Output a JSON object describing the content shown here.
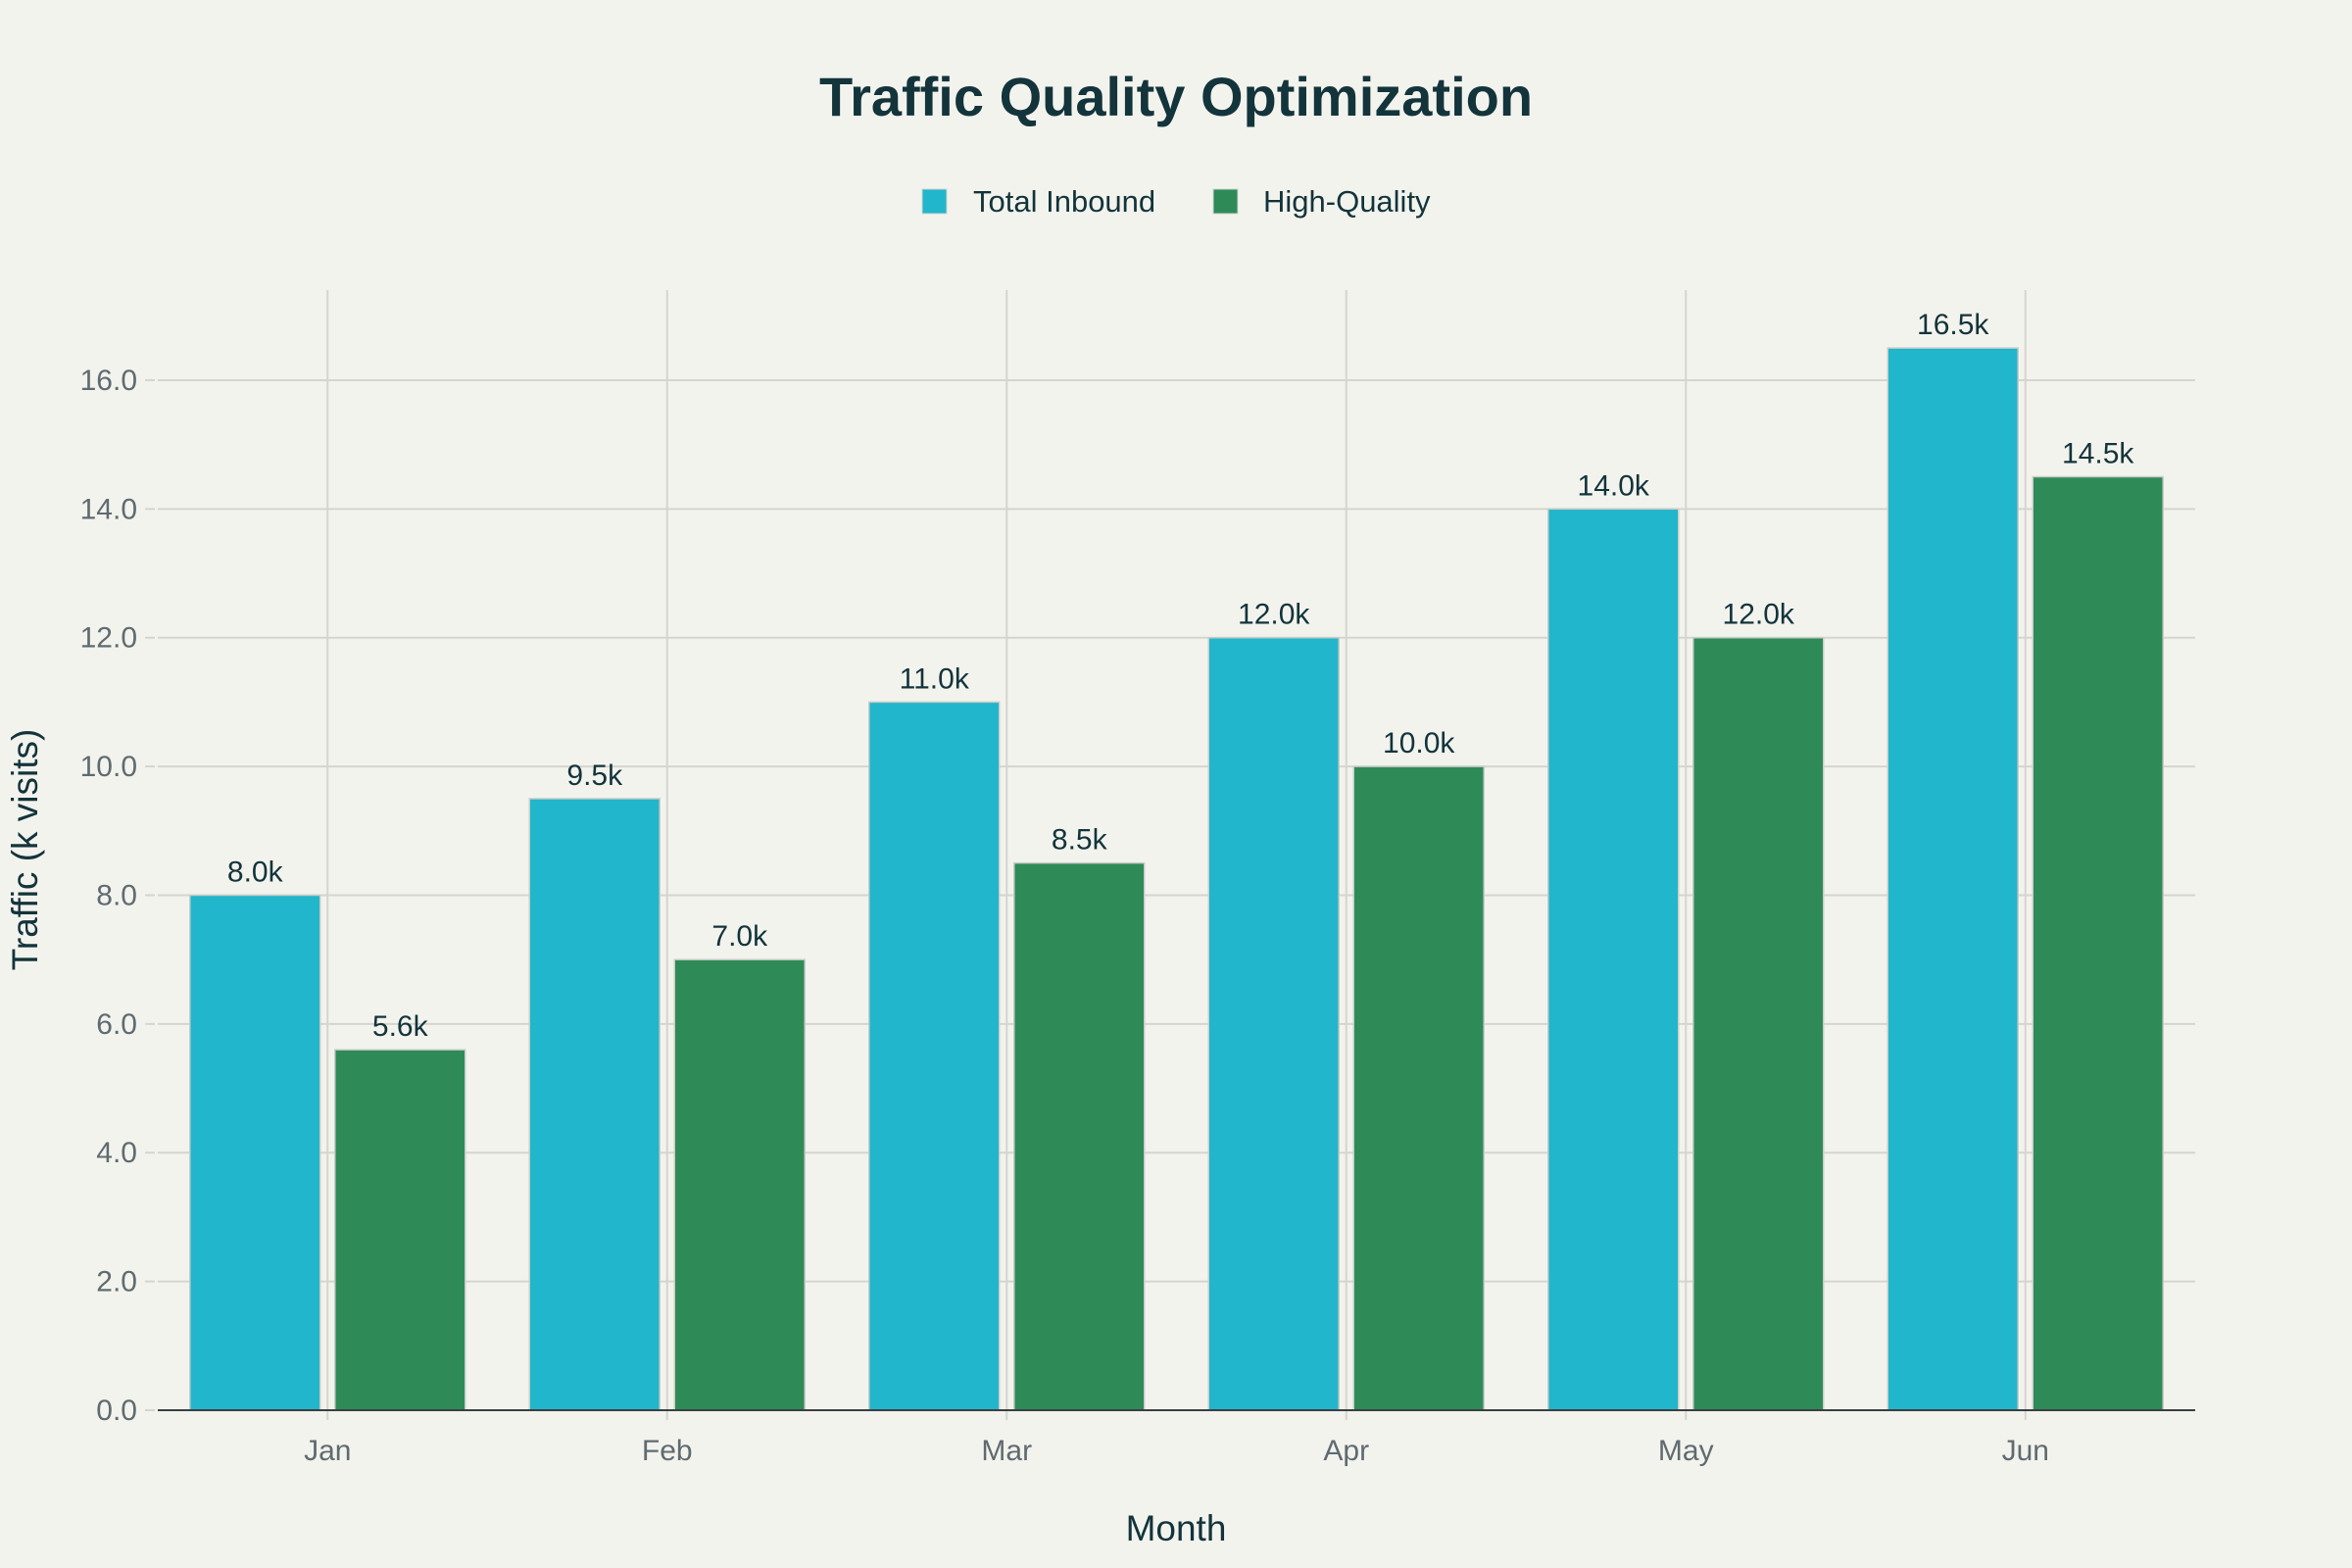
{
  "chart_data": {
    "type": "bar",
    "title": "Traffic Quality Optimization",
    "xlabel": "Month",
    "ylabel": "Traffic (k visits)",
    "categories": [
      "Jan",
      "Feb",
      "Mar",
      "Apr",
      "May",
      "Jun"
    ],
    "series": [
      {
        "name": "Total Inbound",
        "color": "#21b6cb",
        "values": [
          8.0,
          9.5,
          11.0,
          12.0,
          14.0,
          16.5
        ],
        "labels": [
          "8.0k",
          "9.5k",
          "11.0k",
          "12.0k",
          "14.0k",
          "16.5k"
        ]
      },
      {
        "name": "High-Quality",
        "color": "#2e8b57",
        "values": [
          5.6,
          7.0,
          8.5,
          10.0,
          12.0,
          14.5
        ],
        "labels": [
          "5.6k",
          "7.0k",
          "8.5k",
          "10.0k",
          "12.0k",
          "14.5k"
        ]
      }
    ],
    "ylim": [
      0,
      17.4
    ],
    "yticks": [
      "0.0",
      "2.0",
      "4.0",
      "6.0",
      "8.0",
      "10.0",
      "12.0",
      "14.0",
      "16.0"
    ],
    "grid": true,
    "legend_position": "top-center"
  }
}
